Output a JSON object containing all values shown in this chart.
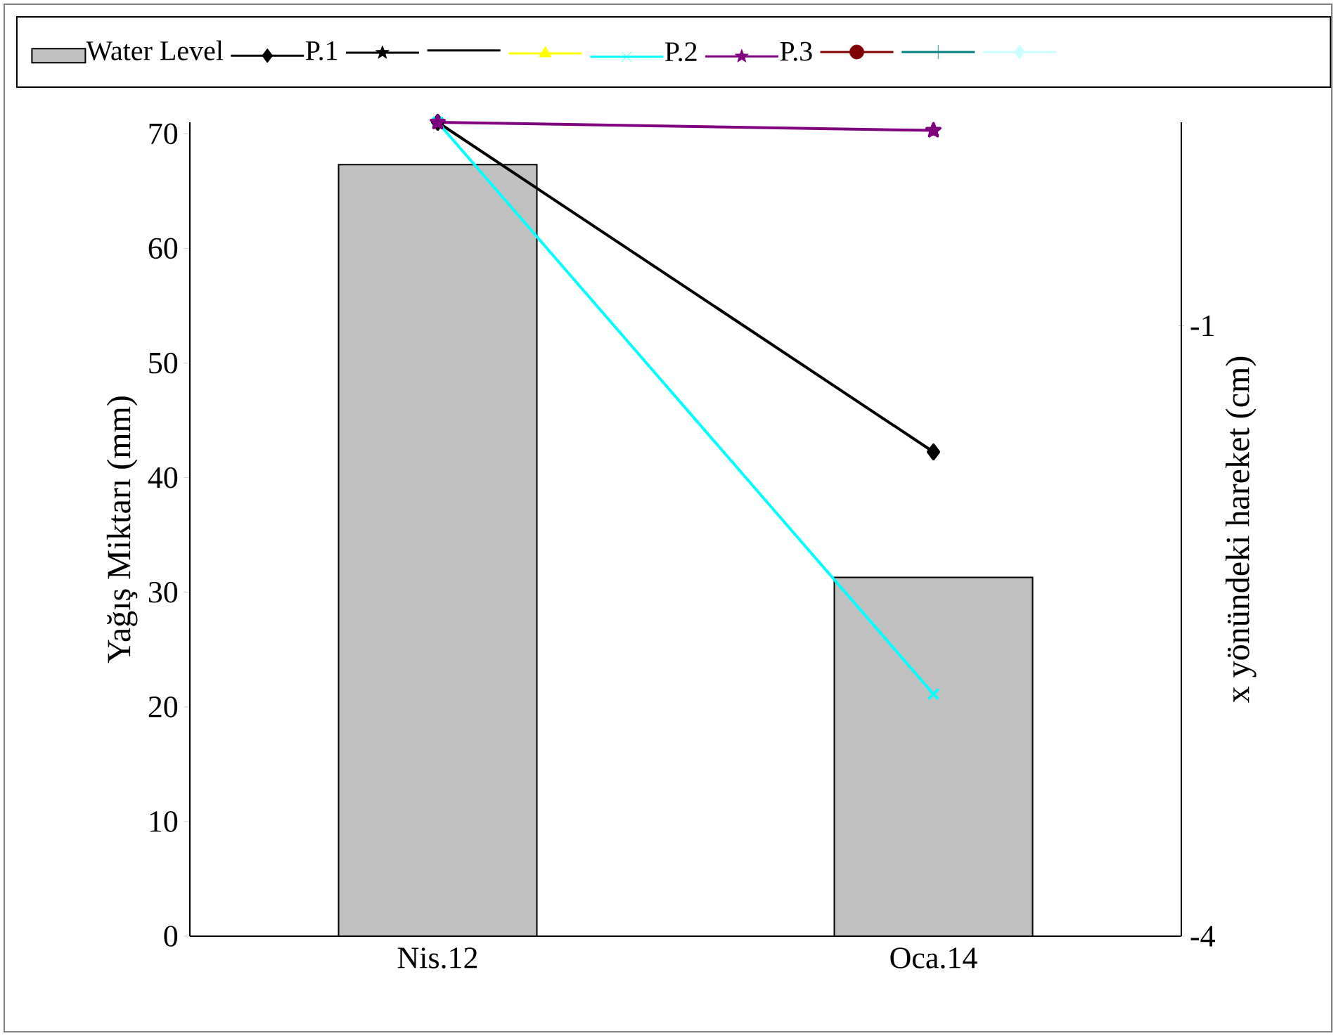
{
  "chart_data": {
    "type": "bar",
    "categories": [
      "Nis.12",
      "Oca.14"
    ],
    "ylabel": "Yağış Miktarı  (mm)",
    "y2label": "x   yönündeki  hareket  (cm)",
    "ylim": [
      0,
      71
    ],
    "yticks": [
      0,
      10,
      20,
      30,
      40,
      50,
      60,
      70
    ],
    "y2lim": [
      -4,
      0
    ],
    "y2ticks": [
      -1,
      -4
    ],
    "series": [
      {
        "name": "Water Level",
        "color": "#c0c0c0",
        "values": [
          67.3,
          31.3
        ]
      },
      {
        "name": "P.1",
        "type": "line",
        "axis": "y2",
        "color": "#000000",
        "marker": "diamond",
        "values": [
          0,
          -1.62
        ]
      },
      {
        "type": "line",
        "axis": "y2",
        "color": "#000000",
        "marker": "star",
        "values": [
          null,
          null
        ]
      },
      {
        "type": "line",
        "axis": "y2",
        "color": "#000000",
        "marker": "none",
        "values": [
          null,
          null
        ]
      },
      {
        "type": "line",
        "axis": "y2",
        "color": "#ffff00",
        "marker": "triangle",
        "values": [
          null,
          null
        ]
      },
      {
        "name": "P.2",
        "type": "line",
        "axis": "y2",
        "color": "#00ffff",
        "marker": "cross",
        "values": [
          0,
          -2.81
        ]
      },
      {
        "name": "P.3",
        "type": "line",
        "axis": "y2",
        "color": "#800080",
        "marker": "star",
        "values": [
          0,
          -0.04
        ]
      },
      {
        "type": "line",
        "axis": "y2",
        "color": "#800000",
        "marker": "circle",
        "values": [
          null,
          null
        ]
      },
      {
        "type": "line",
        "axis": "y2",
        "color": "#008080",
        "marker": "plus",
        "values": [
          null,
          null
        ]
      },
      {
        "type": "line",
        "axis": "y2",
        "color": "#ccffff",
        "marker": "diamond",
        "values": [
          null,
          null
        ]
      }
    ],
    "grid": false,
    "legend": "top"
  }
}
